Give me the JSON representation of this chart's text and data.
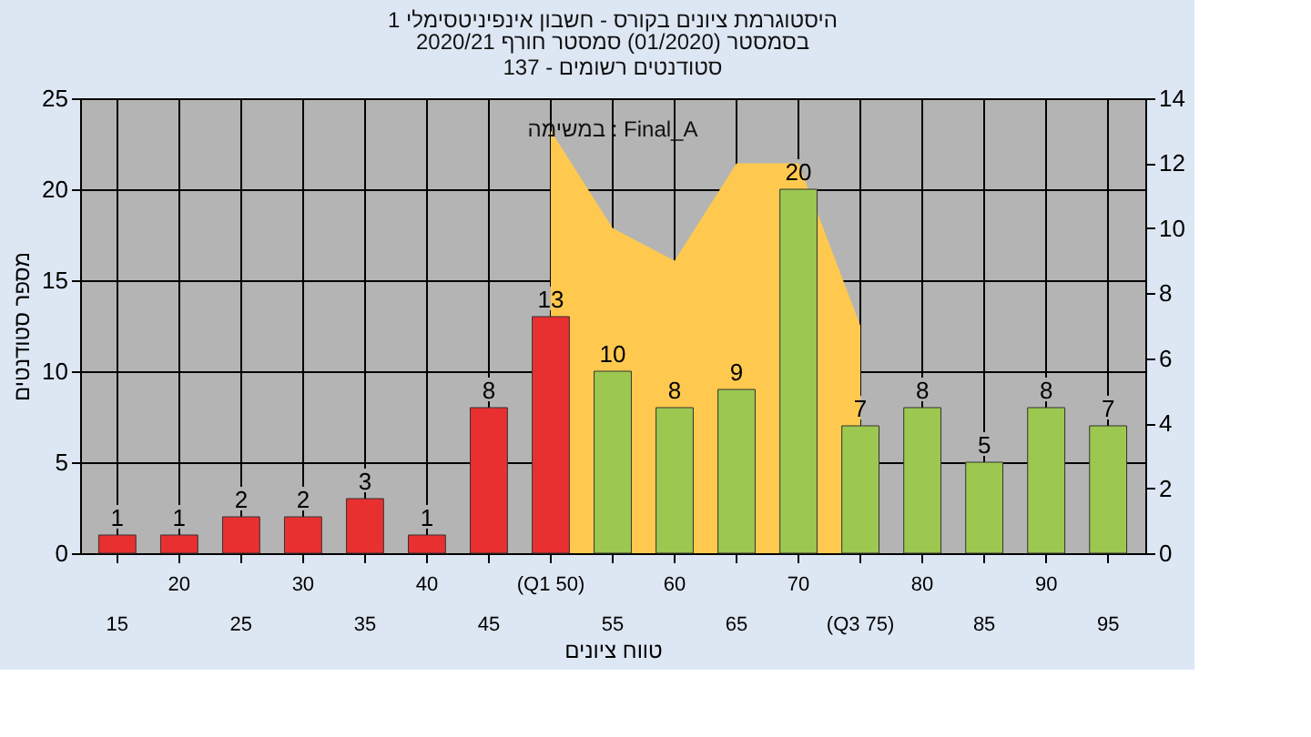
{
  "chart_data": {
    "type": "bar",
    "title": "היסטוגרמת ציונים בקורס - חשבון אינפיניטסימלי 1",
    "subtitle": [
      "בסמסטר  (01/2020)  סמסטר חורף  2020/21",
      "סטודנטים רשומים - 137"
    ],
    "xlabel": "טווח ציונים",
    "ylabel": "מספר סטודנטים",
    "categories": [
      "15",
      "20",
      "25",
      "30",
      "35",
      "40",
      "45",
      "(Q1 50)",
      "55",
      "60",
      "65",
      "70",
      "(Q3 75)",
      "80",
      "85",
      "90",
      "95"
    ],
    "series": [
      {
        "values": [
          1,
          1,
          2,
          2,
          3,
          1,
          8,
          13,
          10,
          8,
          9,
          20,
          7,
          8,
          5,
          8,
          7
        ],
        "value_labels": [
          "1",
          "1",
          "2",
          "2",
          "3",
          "1",
          "8",
          "13",
          "10",
          "8",
          "9",
          "20",
          "7",
          "8",
          "5",
          "8",
          "7"
        ],
        "colors": [
          "#e83030",
          "#e83030",
          "#e83030",
          "#e83030",
          "#e83030",
          "#e83030",
          "#e83030",
          "#e83030",
          "#9cc850",
          "#9cc850",
          "#9cc850",
          "#9cc850",
          "#9cc850",
          "#9cc850",
          "#9cc850",
          "#9cc850",
          "#9cc850"
        ]
      },
      {
        "type": "area",
        "axis": "y2",
        "color": "#ffc94f",
        "values": [
          null,
          null,
          null,
          null,
          null,
          null,
          null,
          13,
          10,
          9,
          12,
          12,
          7,
          null,
          null,
          null,
          null
        ]
      }
    ],
    "ylim": [
      0,
      25
    ],
    "yticks": [
      0,
      5,
      10,
      15,
      20,
      25
    ],
    "y2lim": [
      0,
      14
    ],
    "y2ticks": [
      0,
      2,
      4,
      6,
      8,
      10,
      12,
      14
    ],
    "annotations": [
      "במשימה : Final_A"
    ],
    "grid": true
  }
}
